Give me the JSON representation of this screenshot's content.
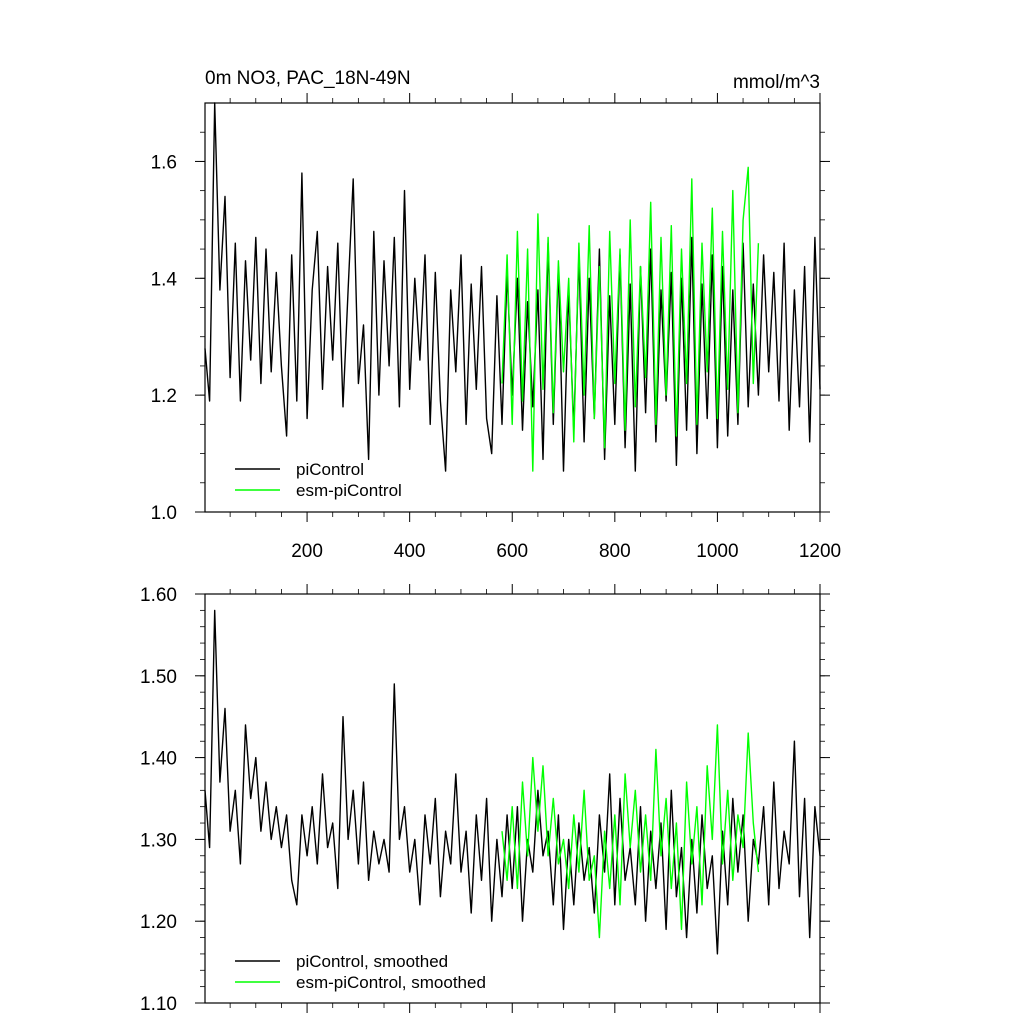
{
  "chart_data": [
    {
      "type": "line",
      "title_left": "0m NO3, PAC_18N-49N",
      "title_right": "mmol/m^3",
      "xlim": [
        1,
        1200
      ],
      "ylim": [
        1.0,
        1.7
      ],
      "x_ticks": [
        200,
        400,
        600,
        800,
        1000,
        1200
      ],
      "x_tick_labels": [
        "200",
        "400",
        "600",
        "800",
        "1000",
        "1200"
      ],
      "y_ticks": [
        1.0,
        1.2,
        1.4,
        1.6
      ],
      "y_tick_labels": [
        "1.0",
        "1.2",
        "1.4",
        "1.6"
      ],
      "legend_position": "bottom-left",
      "series": [
        {
          "name": "piControl",
          "color": "#000000",
          "x": [
            1,
            10,
            20,
            30,
            40,
            50,
            60,
            70,
            80,
            90,
            100,
            110,
            120,
            130,
            140,
            150,
            160,
            170,
            180,
            190,
            200,
            210,
            220,
            230,
            240,
            250,
            260,
            270,
            280,
            290,
            300,
            310,
            320,
            330,
            340,
            350,
            360,
            370,
            380,
            390,
            400,
            410,
            420,
            430,
            440,
            450,
            460,
            470,
            480,
            490,
            500,
            510,
            520,
            530,
            540,
            550,
            560,
            570,
            580,
            590,
            600,
            610,
            620,
            630,
            640,
            650,
            660,
            670,
            680,
            690,
            700,
            710,
            720,
            730,
            740,
            750,
            760,
            770,
            780,
            790,
            800,
            810,
            820,
            830,
            840,
            850,
            860,
            870,
            880,
            890,
            900,
            910,
            920,
            930,
            940,
            950,
            960,
            970,
            980,
            990,
            1000,
            1010,
            1020,
            1030,
            1040,
            1050,
            1060,
            1070,
            1080,
            1090,
            1100,
            1110,
            1120,
            1130,
            1140,
            1150,
            1160,
            1170,
            1180,
            1190,
            1200
          ],
          "values": [
            1.28,
            1.19,
            1.7,
            1.38,
            1.54,
            1.23,
            1.46,
            1.19,
            1.43,
            1.26,
            1.47,
            1.22,
            1.45,
            1.24,
            1.41,
            1.25,
            1.13,
            1.44,
            1.19,
            1.58,
            1.16,
            1.38,
            1.48,
            1.21,
            1.42,
            1.26,
            1.46,
            1.18,
            1.38,
            1.57,
            1.22,
            1.32,
            1.09,
            1.48,
            1.2,
            1.43,
            1.25,
            1.47,
            1.18,
            1.55,
            1.21,
            1.4,
            1.26,
            1.44,
            1.15,
            1.41,
            1.19,
            1.07,
            1.38,
            1.24,
            1.44,
            1.15,
            1.39,
            1.21,
            1.42,
            1.16,
            1.1,
            1.37,
            1.15,
            1.41,
            1.2,
            1.4,
            1.14,
            1.36,
            1.18,
            1.38,
            1.09,
            1.46,
            1.15,
            1.42,
            1.07,
            1.38,
            1.14,
            1.44,
            1.12,
            1.4,
            1.16,
            1.45,
            1.09,
            1.37,
            1.15,
            1.44,
            1.11,
            1.39,
            1.07,
            1.42,
            1.17,
            1.45,
            1.12,
            1.38,
            1.19,
            1.41,
            1.08,
            1.4,
            1.14,
            1.47,
            1.1,
            1.39,
            1.16,
            1.44,
            1.11,
            1.42,
            1.13,
            1.38,
            1.15,
            1.46,
            1.18,
            1.39,
            1.2,
            1.44,
            1.24,
            1.41,
            1.19,
            1.46,
            1.14,
            1.38,
            1.18,
            1.42,
            1.12,
            1.47,
            1.21
          ]
        },
        {
          "name": "esm-piControl",
          "color": "#00ff00",
          "x": [
            580,
            590,
            600,
            610,
            620,
            630,
            640,
            650,
            660,
            670,
            680,
            690,
            700,
            710,
            720,
            730,
            740,
            750,
            760,
            770,
            780,
            790,
            800,
            810,
            820,
            830,
            840,
            850,
            860,
            870,
            880,
            890,
            900,
            910,
            920,
            930,
            940,
            950,
            960,
            970,
            980,
            990,
            1000,
            1010,
            1020,
            1030,
            1040,
            1050,
            1060,
            1070,
            1080
          ],
          "values": [
            1.22,
            1.44,
            1.15,
            1.48,
            1.19,
            1.45,
            1.07,
            1.51,
            1.21,
            1.47,
            1.17,
            1.43,
            1.24,
            1.4,
            1.12,
            1.46,
            1.2,
            1.49,
            1.16,
            1.42,
            1.11,
            1.48,
            1.22,
            1.45,
            1.14,
            1.5,
            1.18,
            1.42,
            1.23,
            1.53,
            1.15,
            1.47,
            1.2,
            1.49,
            1.13,
            1.45,
            1.22,
            1.57,
            1.15,
            1.46,
            1.24,
            1.52,
            1.16,
            1.48,
            1.21,
            1.55,
            1.17,
            1.5,
            1.59,
            1.22,
            1.46
          ]
        }
      ]
    },
    {
      "type": "line",
      "xlim": [
        1,
        1200
      ],
      "ylim": [
        1.1,
        1.6
      ],
      "x_ticks": [
        200,
        400,
        600,
        800,
        1000,
        1200
      ],
      "y_ticks": [
        1.1,
        1.2,
        1.3,
        1.4,
        1.5,
        1.6
      ],
      "y_tick_labels": [
        "1.10",
        "1.20",
        "1.30",
        "1.40",
        "1.50",
        "1.60"
      ],
      "legend_position": "bottom-left",
      "series": [
        {
          "name": "piControl, smoothed",
          "color": "#000000",
          "x": [
            1,
            10,
            20,
            30,
            40,
            50,
            60,
            70,
            80,
            90,
            100,
            110,
            120,
            130,
            140,
            150,
            160,
            170,
            180,
            190,
            200,
            210,
            220,
            230,
            240,
            250,
            260,
            270,
            280,
            290,
            300,
            310,
            320,
            330,
            340,
            350,
            360,
            370,
            380,
            390,
            400,
            410,
            420,
            430,
            440,
            450,
            460,
            470,
            480,
            490,
            500,
            510,
            520,
            530,
            540,
            550,
            560,
            570,
            580,
            590,
            600,
            610,
            620,
            630,
            640,
            650,
            660,
            670,
            680,
            690,
            700,
            710,
            720,
            730,
            740,
            750,
            760,
            770,
            780,
            790,
            800,
            810,
            820,
            830,
            840,
            850,
            860,
            870,
            880,
            890,
            900,
            910,
            920,
            930,
            940,
            950,
            960,
            970,
            980,
            990,
            1000,
            1010,
            1020,
            1030,
            1040,
            1050,
            1060,
            1070,
            1080,
            1090,
            1100,
            1110,
            1120,
            1130,
            1140,
            1150,
            1160,
            1170,
            1180,
            1190,
            1200
          ],
          "values": [
            1.36,
            1.29,
            1.58,
            1.37,
            1.46,
            1.31,
            1.36,
            1.27,
            1.44,
            1.35,
            1.4,
            1.31,
            1.37,
            1.3,
            1.34,
            1.29,
            1.33,
            1.25,
            1.22,
            1.33,
            1.28,
            1.34,
            1.27,
            1.38,
            1.29,
            1.32,
            1.24,
            1.45,
            1.3,
            1.36,
            1.27,
            1.37,
            1.25,
            1.31,
            1.27,
            1.3,
            1.26,
            1.49,
            1.3,
            1.34,
            1.26,
            1.3,
            1.22,
            1.33,
            1.27,
            1.35,
            1.23,
            1.31,
            1.27,
            1.38,
            1.26,
            1.31,
            1.21,
            1.33,
            1.25,
            1.35,
            1.2,
            1.3,
            1.23,
            1.33,
            1.24,
            1.34,
            1.2,
            1.3,
            1.26,
            1.36,
            1.28,
            1.31,
            1.22,
            1.33,
            1.19,
            1.3,
            1.22,
            1.32,
            1.25,
            1.29,
            1.21,
            1.33,
            1.26,
            1.38,
            1.22,
            1.35,
            1.25,
            1.29,
            1.22,
            1.34,
            1.2,
            1.31,
            1.24,
            1.32,
            1.19,
            1.36,
            1.23,
            1.29,
            1.18,
            1.3,
            1.21,
            1.33,
            1.24,
            1.28,
            1.16,
            1.31,
            1.22,
            1.35,
            1.26,
            1.33,
            1.2,
            1.3,
            1.27,
            1.34,
            1.22,
            1.37,
            1.24,
            1.31,
            1.27,
            1.42,
            1.23,
            1.35,
            1.18,
            1.34,
            1.28
          ]
        },
        {
          "name": "esm-piControl, smoothed",
          "color": "#00ff00",
          "x": [
            580,
            590,
            600,
            610,
            620,
            630,
            640,
            650,
            660,
            670,
            680,
            690,
            700,
            710,
            720,
            730,
            740,
            750,
            760,
            770,
            780,
            790,
            800,
            810,
            820,
            830,
            840,
            850,
            860,
            870,
            880,
            890,
            900,
            910,
            920,
            930,
            940,
            950,
            960,
            970,
            980,
            990,
            1000,
            1010,
            1020,
            1030,
            1040,
            1050,
            1060,
            1070,
            1080
          ],
          "values": [
            1.31,
            1.25,
            1.34,
            1.24,
            1.37,
            1.28,
            1.4,
            1.31,
            1.39,
            1.28,
            1.35,
            1.27,
            1.3,
            1.24,
            1.33,
            1.26,
            1.36,
            1.25,
            1.28,
            1.18,
            1.31,
            1.24,
            1.33,
            1.22,
            1.38,
            1.29,
            1.36,
            1.26,
            1.33,
            1.25,
            1.41,
            1.28,
            1.35,
            1.24,
            1.32,
            1.19,
            1.37,
            1.27,
            1.34,
            1.22,
            1.39,
            1.3,
            1.44,
            1.27,
            1.36,
            1.25,
            1.33,
            1.29,
            1.43,
            1.32,
            1.26
          ]
        }
      ]
    }
  ]
}
